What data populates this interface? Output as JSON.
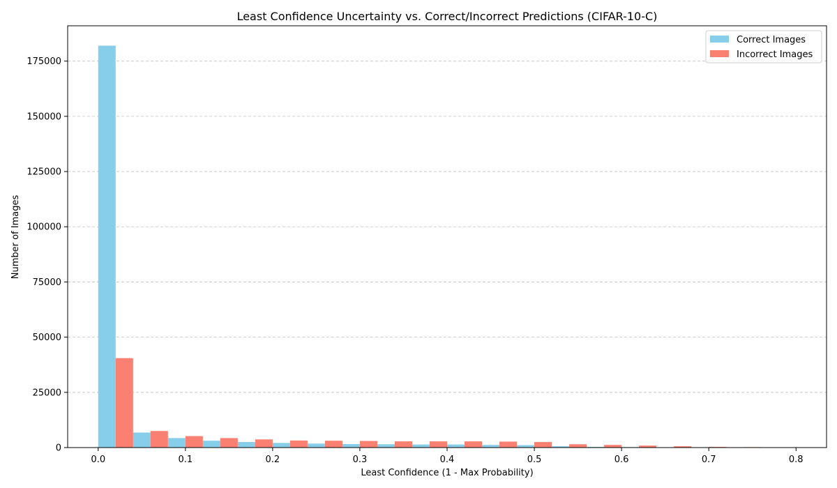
{
  "chart_data": {
    "type": "bar",
    "title": "Least Confidence Uncertainty vs. Correct/Incorrect Predictions (CIFAR-10-C)",
    "xlabel": "Least Confidence (1 - Max Probability)",
    "ylabel": "Number of Images",
    "xlim": [
      -0.035,
      0.835
    ],
    "ylim": [
      0,
      191000
    ],
    "xticks": [
      0.0,
      0.1,
      0.2,
      0.3,
      0.4,
      0.5,
      0.6,
      0.7,
      0.8
    ],
    "xtick_labels": [
      "0.0",
      "0.1",
      "0.2",
      "0.3",
      "0.4",
      "0.5",
      "0.6",
      "0.7",
      "0.8"
    ],
    "yticks": [
      0,
      25000,
      50000,
      75000,
      100000,
      125000,
      150000,
      175000
    ],
    "ytick_labels": [
      "0",
      "25000",
      "50000",
      "75000",
      "100000",
      "125000",
      "150000",
      "175000"
    ],
    "grid": "y-dashed",
    "legend_position": "top-right",
    "bin_width": 0.04,
    "bin_starts": [
      0.0,
      0.04,
      0.08,
      0.12,
      0.16,
      0.2,
      0.24,
      0.28,
      0.32,
      0.36,
      0.4,
      0.44,
      0.48,
      0.52,
      0.56,
      0.6,
      0.64,
      0.68,
      0.72,
      0.76
    ],
    "series": [
      {
        "name": "Correct Images",
        "color": "#87ceeb",
        "values": [
          182000,
          6800,
          4300,
          3100,
          2500,
          2100,
          1800,
          1600,
          1500,
          1400,
          1400,
          1200,
          1100,
          600,
          300,
          200,
          100,
          50,
          20,
          10
        ]
      },
      {
        "name": "Incorrect Images",
        "color": "#fa8072",
        "values": [
          40500,
          7500,
          5200,
          4300,
          3700,
          3200,
          3100,
          3000,
          2800,
          2800,
          2800,
          2700,
          2500,
          1500,
          1200,
          900,
          600,
          300,
          200,
          100
        ]
      }
    ]
  }
}
